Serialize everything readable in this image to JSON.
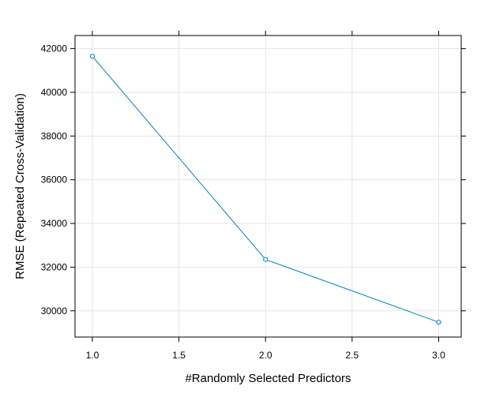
{
  "chart_data": {
    "type": "line",
    "title": "",
    "xlabel": "#Randomly Selected Predictors",
    "ylabel": "RMSE (Repeated Cross-Validation)",
    "x": [
      1.0,
      2.0,
      3.0
    ],
    "series": [
      {
        "values": [
          41650,
          32350,
          29480
        ],
        "color": "#0080c0"
      }
    ],
    "xlim": [
      0.9,
      3.13
    ],
    "ylim": [
      28800,
      42600
    ],
    "xticks": [
      "1.0",
      "1.5",
      "2.0",
      "2.5",
      "3.0"
    ],
    "xtick_values": [
      1.0,
      1.5,
      2.0,
      2.5,
      3.0
    ],
    "yticks": [
      "30000",
      "32000",
      "34000",
      "36000",
      "38000",
      "40000",
      "42000"
    ],
    "ytick_values": [
      30000,
      32000,
      34000,
      36000,
      38000,
      40000,
      42000
    ],
    "grid": true,
    "grid_color": "#e6e6e6",
    "marker": "open-circle"
  }
}
